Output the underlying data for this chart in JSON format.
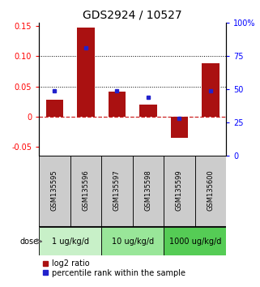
{
  "title": "GDS2924 / 10527",
  "samples": [
    "GSM135595",
    "GSM135596",
    "GSM135597",
    "GSM135598",
    "GSM135599",
    "GSM135600"
  ],
  "log2_ratio": [
    0.028,
    0.147,
    0.042,
    0.02,
    -0.035,
    0.088
  ],
  "percentile_rank": [
    49,
    81,
    49,
    44,
    28,
    49
  ],
  "dose_groups": [
    {
      "label": "1 ug/kg/d",
      "start": 0,
      "end": 2,
      "color": "#c8f0c8"
    },
    {
      "label": "10 ug/kg/d",
      "start": 2,
      "end": 4,
      "color": "#99e699"
    },
    {
      "label": "1000 ug/kg/d",
      "start": 4,
      "end": 6,
      "color": "#55cc55"
    }
  ],
  "bar_color": "#aa1111",
  "dot_color": "#2222cc",
  "left_ylim": [
    -0.065,
    0.155
  ],
  "right_ylim": [
    0,
    100
  ],
  "left_yticks": [
    -0.05,
    0,
    0.05,
    0.1,
    0.15
  ],
  "left_yticklabels": [
    "-0.05",
    "0",
    "0.05",
    "0.10",
    "0.15"
  ],
  "right_yticks": [
    0,
    25,
    50,
    75,
    100
  ],
  "right_yticklabels": [
    "0",
    "25",
    "50",
    "75",
    "100%"
  ],
  "hline_y": [
    0.05,
    0.1
  ],
  "zero_line_color": "#cc2222",
  "sample_bg_color": "#cccccc",
  "title_fontsize": 10,
  "axis_fontsize": 7,
  "tick_fontsize": 7,
  "legend_fontsize": 7,
  "sample_fontsize": 6,
  "dose_fontsize": 7
}
